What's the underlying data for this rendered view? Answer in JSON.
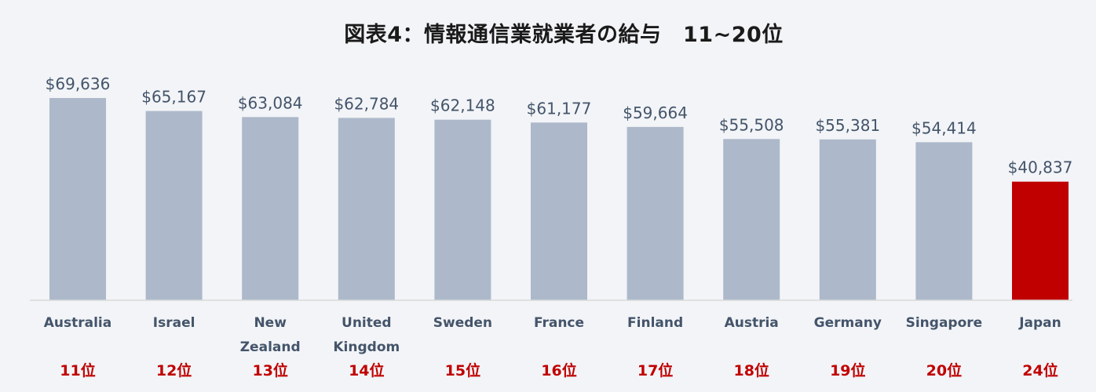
{
  "chart_data": {
    "type": "bar",
    "title": "図表4：情報通信業就業者の給与　11~20位",
    "categories": [
      [
        "Australia"
      ],
      [
        "Israel"
      ],
      [
        "New",
        "Zealand"
      ],
      [
        "United",
        "Kingdom"
      ],
      [
        "Sweden"
      ],
      [
        "France"
      ],
      [
        "Finland"
      ],
      [
        "Austria"
      ],
      [
        "Germany"
      ],
      [
        "Singapore"
      ],
      [
        "Japan"
      ]
    ],
    "values": [
      69636,
      65167,
      63084,
      62784,
      62148,
      61177,
      59664,
      55508,
      55381,
      54414,
      40837
    ],
    "value_labels": [
      "$69,636",
      "$65,167",
      "$63,084",
      "$62,784",
      "$62,148",
      "$61,177",
      "$59,664",
      "$55,508",
      "$55,381",
      "$54,414",
      "$40,837"
    ],
    "ranks": [
      "11位",
      "12位",
      "13位",
      "14位",
      "15位",
      "16位",
      "17位",
      "18位",
      "19位",
      "20位",
      "24位"
    ],
    "ylim": [
      0,
      69636
    ],
    "grid": false,
    "legend": "none",
    "colors": {
      "default_bar": "#adb9ca",
      "highlight_bar": "#c00000",
      "highlight_index": 10,
      "axis": "#d9d9d9",
      "value_text": "#44546a",
      "category_text": "#44546a",
      "rank_text": "#c00000"
    }
  }
}
